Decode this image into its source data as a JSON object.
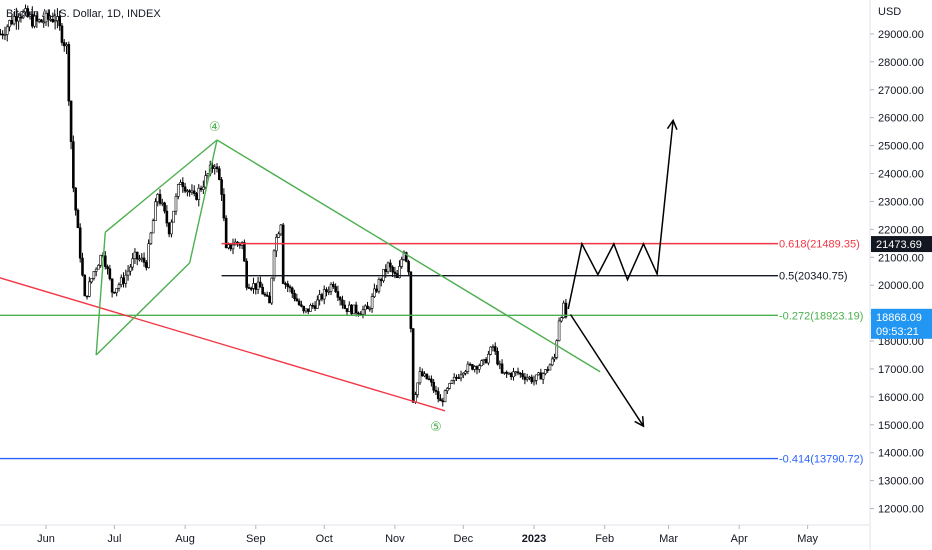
{
  "chart_data": {
    "type": "candlestick",
    "title": "Bitcoin / U.S. Dollar, 1D, INDEX",
    "currency_label": "USD",
    "y_ticks": [
      12000,
      13000,
      14000,
      15000,
      16000,
      17000,
      18000,
      19000,
      20000,
      21000,
      22000,
      23000,
      24000,
      25000,
      26000,
      27000,
      28000,
      29000
    ],
    "y_tick_labels": [
      "12000.00",
      "13000.00",
      "14000.00",
      "15000.00",
      "16000.00",
      "17000.00",
      "18000.00",
      "19000.00",
      "20000.00",
      "21000.00",
      "22000.00",
      "23000.00",
      "24000.00",
      "25000.00",
      "26000.00",
      "27000.00",
      "28000.00",
      "29000.00"
    ],
    "x_ticks": [
      {
        "label": "Jun",
        "date": "2022-06-01"
      },
      {
        "label": "Jul",
        "date": "2022-07-01"
      },
      {
        "label": "Aug",
        "date": "2022-08-01"
      },
      {
        "label": "Sep",
        "date": "2022-09-01"
      },
      {
        "label": "Oct",
        "date": "2022-10-01"
      },
      {
        "label": "Nov",
        "date": "2022-11-01"
      },
      {
        "label": "Dec",
        "date": "2022-12-01"
      },
      {
        "label": "2023",
        "date": "2023-01-01",
        "bold": true
      },
      {
        "label": "Feb",
        "date": "2023-02-01"
      },
      {
        "label": "Mar",
        "date": "2023-03-01"
      },
      {
        "label": "Apr",
        "date": "2023-04-01"
      },
      {
        "label": "May",
        "date": "2023-05-01"
      }
    ],
    "price_path": [
      [
        "2022-05-12",
        29000
      ],
      [
        "2022-05-20",
        29800
      ],
      [
        "2022-05-28",
        29400
      ],
      [
        "2022-06-05",
        29600
      ],
      [
        "2022-06-10",
        28500
      ],
      [
        "2022-06-13",
        23500
      ],
      [
        "2022-06-18",
        19500
      ],
      [
        "2022-06-22",
        20500
      ],
      [
        "2022-06-26",
        21200
      ],
      [
        "2022-06-30",
        19800
      ],
      [
        "2022-07-05",
        20200
      ],
      [
        "2022-07-10",
        21000
      ],
      [
        "2022-07-15",
        20800
      ],
      [
        "2022-07-20",
        23300
      ],
      [
        "2022-07-25",
        22000
      ],
      [
        "2022-07-30",
        23800
      ],
      [
        "2022-08-05",
        23100
      ],
      [
        "2022-08-10",
        23800
      ],
      [
        "2022-08-14",
        24400
      ],
      [
        "2022-08-17",
        23400
      ],
      [
        "2022-08-19",
        21200
      ],
      [
        "2022-08-22",
        21500
      ],
      [
        "2022-08-26",
        21500
      ],
      [
        "2022-08-28",
        20100
      ],
      [
        "2022-09-03",
        19900
      ],
      [
        "2022-09-07",
        19300
      ],
      [
        "2022-09-09",
        21400
      ],
      [
        "2022-09-12",
        22300
      ],
      [
        "2022-09-13",
        20200
      ],
      [
        "2022-09-18",
        19600
      ],
      [
        "2022-09-22",
        19000
      ],
      [
        "2022-09-28",
        19400
      ],
      [
        "2022-10-05",
        20100
      ],
      [
        "2022-10-10",
        19200
      ],
      [
        "2022-10-15",
        19100
      ],
      [
        "2022-10-20",
        19100
      ],
      [
        "2022-10-25",
        20100
      ],
      [
        "2022-10-29",
        20700
      ],
      [
        "2022-11-02",
        20200
      ],
      [
        "2022-11-05",
        21300
      ],
      [
        "2022-11-07",
        20600
      ],
      [
        "2022-11-08",
        18500
      ],
      [
        "2022-11-09",
        15900
      ],
      [
        "2022-11-12",
        16800
      ],
      [
        "2022-11-16",
        16600
      ],
      [
        "2022-11-21",
        15800
      ],
      [
        "2022-11-26",
        16500
      ],
      [
        "2022-12-01",
        17000
      ],
      [
        "2022-12-05",
        17100
      ],
      [
        "2022-12-10",
        17200
      ],
      [
        "2022-12-14",
        17800
      ],
      [
        "2022-12-18",
        16800
      ],
      [
        "2022-12-25",
        16850
      ],
      [
        "2023-01-01",
        16600
      ],
      [
        "2023-01-06",
        16900
      ],
      [
        "2023-01-10",
        17400
      ],
      [
        "2023-01-12",
        18800
      ],
      [
        "2023-01-14",
        19200
      ],
      [
        "2023-01-15",
        18868
      ]
    ],
    "levels": [
      {
        "name": "fib-0-618",
        "label": "0.618(21489.35)",
        "price": 21489.35,
        "color": "#f23645",
        "start": "2022-08-17",
        "end": "2023-02-22"
      },
      {
        "name": "fib-0-5",
        "label": "0.5(20340.75)",
        "price": 20340.75,
        "color": "#131722",
        "start": "2022-08-17",
        "end": "2023-02-22"
      },
      {
        "name": "fib-neg-0-272",
        "label": "-0.272(18923.19)",
        "price": 18923.19,
        "color": "#4caf50",
        "start": "2022-05-12",
        "end": "2023-02-22"
      },
      {
        "name": "fib-neg-0-414",
        "label": "-0.414(13790.72)",
        "price": 13790.72,
        "color": "#2962ff",
        "start": "2022-05-12",
        "end": "2023-02-22"
      }
    ],
    "trendlines": [
      {
        "name": "green-resistance-line",
        "color": "#4caf50",
        "from": [
          "2022-08-15",
          25200
        ],
        "to": [
          "2023-01-30",
          16900
        ]
      },
      {
        "name": "red-support-line",
        "color": "#f23645",
        "from": [
          "2022-04-28",
          20600
        ],
        "to": [
          "2022-11-23",
          15500
        ]
      },
      {
        "name": "green-wedge-upper",
        "color": "#4caf50",
        "from": [
          "2022-06-27",
          21900
        ],
        "to": [
          "2022-08-15",
          25200
        ]
      },
      {
        "name": "green-wedge-lower",
        "color": "#4caf50",
        "from": [
          "2022-06-23",
          17500
        ],
        "to": [
          "2022-08-03",
          20800
        ]
      },
      {
        "name": "green-wedge-left",
        "color": "#4caf50",
        "from": [
          "2022-06-23",
          17500
        ],
        "to": [
          "2022-06-27",
          21900
        ]
      },
      {
        "name": "green-wedge-right",
        "color": "#4caf50",
        "from": [
          "2022-08-03",
          20800
        ],
        "to": [
          "2022-08-15",
          25200
        ]
      }
    ],
    "projections": [
      {
        "name": "bullish-projection-arrow",
        "points": [
          [
            "2023-01-16",
            19150
          ],
          [
            "2023-01-22",
            21480
          ],
          [
            "2023-01-29",
            20380
          ],
          [
            "2023-02-05",
            21480
          ],
          [
            "2023-02-11",
            20200
          ],
          [
            "2023-02-18",
            21480
          ],
          [
            "2023-02-24",
            20400
          ],
          [
            "2023-03-03",
            25900
          ]
        ]
      },
      {
        "name": "bearish-projection-arrow",
        "points": [
          [
            "2023-01-17",
            18950
          ],
          [
            "2023-02-18",
            14950
          ]
        ]
      }
    ],
    "wave_labels": [
      {
        "name": "wave-4-label",
        "text": "④",
        "date": "2022-08-14",
        "price": 25700,
        "color": "#4caf50"
      },
      {
        "name": "wave-5-label",
        "text": "⑤",
        "date": "2022-11-19",
        "price": 14950,
        "color": "#4caf50"
      }
    ],
    "last_price": {
      "price": "18868.09",
      "countdown": "09:53:21",
      "color": "#2196f3"
    },
    "crosshair_price": {
      "price": "21473.69",
      "color": "#131722"
    }
  }
}
